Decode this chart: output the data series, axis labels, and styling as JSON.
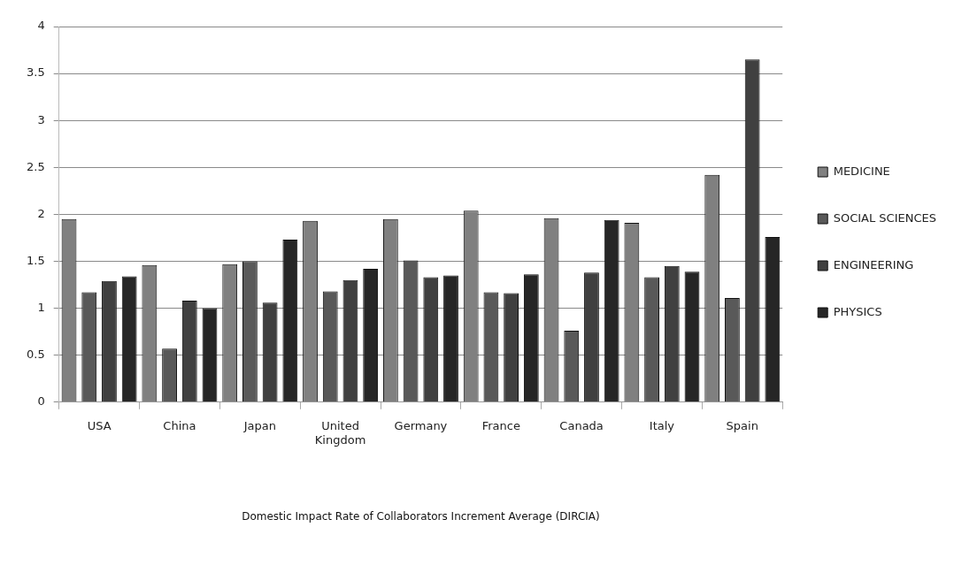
{
  "chart_data": {
    "type": "bar",
    "annotations": [
      "Domestic Impact Rate of Collaborators Increment Average (DIRCIA)"
    ],
    "categories": [
      "USA",
      "China",
      "Japan",
      "United Kingdom",
      "Germany",
      "France",
      "Canada",
      "Italy",
      "Spain"
    ],
    "series": [
      {
        "name": "MEDICINE",
        "color": "#808080",
        "values": [
          1.95,
          1.46,
          1.47,
          1.93,
          1.95,
          2.04,
          1.96,
          1.91,
          2.42
        ]
      },
      {
        "name": "SOCIAL SCIENCES",
        "color": "#595959",
        "values": [
          1.17,
          0.57,
          1.5,
          1.18,
          1.51,
          1.17,
          0.76,
          1.33,
          1.11
        ]
      },
      {
        "name": "ENGINEERING",
        "color": "#404040",
        "values": [
          1.29,
          1.08,
          1.06,
          1.3,
          1.33,
          1.16,
          1.38,
          1.45,
          3.65
        ]
      },
      {
        "name": "PHYSICS",
        "color": "#262626",
        "values": [
          1.34,
          1.0,
          1.73,
          1.42,
          1.35,
          1.36,
          1.94,
          1.39,
          1.76
        ]
      }
    ],
    "ylim": [
      0,
      4
    ],
    "yticks": [
      0,
      0.5,
      1,
      1.5,
      2,
      2.5,
      3,
      3.5,
      4
    ],
    "grid": "y",
    "legend": "right"
  }
}
